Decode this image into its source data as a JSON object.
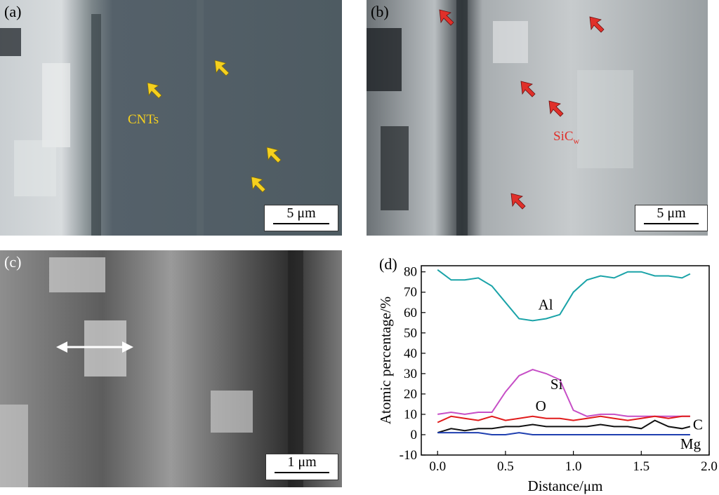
{
  "panels": {
    "a": {
      "label": "(a)",
      "scale": "5 μm",
      "annotation": "CNTs",
      "annotation_color": "#f5d01e"
    },
    "b": {
      "label": "(b)",
      "scale": "5 μm",
      "annotation": "SiC",
      "annotation_sub": "w",
      "annotation_color": "#e0302a"
    },
    "c": {
      "label": "(c)",
      "scale": "1 μm"
    },
    "d": {
      "label": "(d)"
    }
  },
  "chart_data": {
    "type": "line",
    "xlabel": "Distance/μm",
    "ylabel": "Atomic percentage/%",
    "xlim": [
      -0.12,
      2.0
    ],
    "ylim": [
      -10,
      83
    ],
    "xticks": [
      "0.0",
      "0.5",
      "1.0",
      "1.5",
      "2.0"
    ],
    "yticks": [
      "-10",
      "0",
      "10",
      "20",
      "30",
      "40",
      "50",
      "60",
      "70",
      "80"
    ],
    "x": [
      0.0,
      0.1,
      0.2,
      0.3,
      0.4,
      0.5,
      0.6,
      0.7,
      0.8,
      0.9,
      1.0,
      1.1,
      1.2,
      1.3,
      1.4,
      1.5,
      1.6,
      1.7,
      1.8,
      1.86
    ],
    "series": [
      {
        "name": "Al",
        "color": "#1aa3a8",
        "values": [
          81,
          76,
          76,
          77,
          73,
          65,
          57,
          56,
          57,
          59,
          70,
          76,
          78,
          77,
          80,
          80,
          78,
          78,
          77,
          79
        ]
      },
      {
        "name": "Si",
        "color": "#c64ec6",
        "values": [
          10,
          11,
          10,
          11,
          11,
          21,
          29,
          32,
          30,
          27,
          12,
          9,
          10,
          10,
          9,
          9,
          9,
          9,
          9,
          9
        ]
      },
      {
        "name": "O",
        "color": "#e01b1b",
        "values": [
          6,
          9,
          8,
          7,
          9,
          7,
          8,
          9,
          8,
          8,
          7,
          8,
          9,
          8,
          7,
          8,
          9,
          8,
          9,
          9
        ]
      },
      {
        "name": "C",
        "color": "#111111",
        "values": [
          1,
          3,
          2,
          3,
          3,
          4,
          4,
          5,
          4,
          4,
          4,
          4,
          5,
          4,
          4,
          3,
          7,
          4,
          3,
          4
        ]
      },
      {
        "name": "Mg",
        "color": "#1f3fb0",
        "values": [
          1,
          1,
          1,
          1,
          0,
          0,
          1,
          0,
          0,
          0,
          0,
          0,
          0,
          0,
          0,
          0,
          0,
          0,
          0,
          0
        ]
      }
    ]
  }
}
